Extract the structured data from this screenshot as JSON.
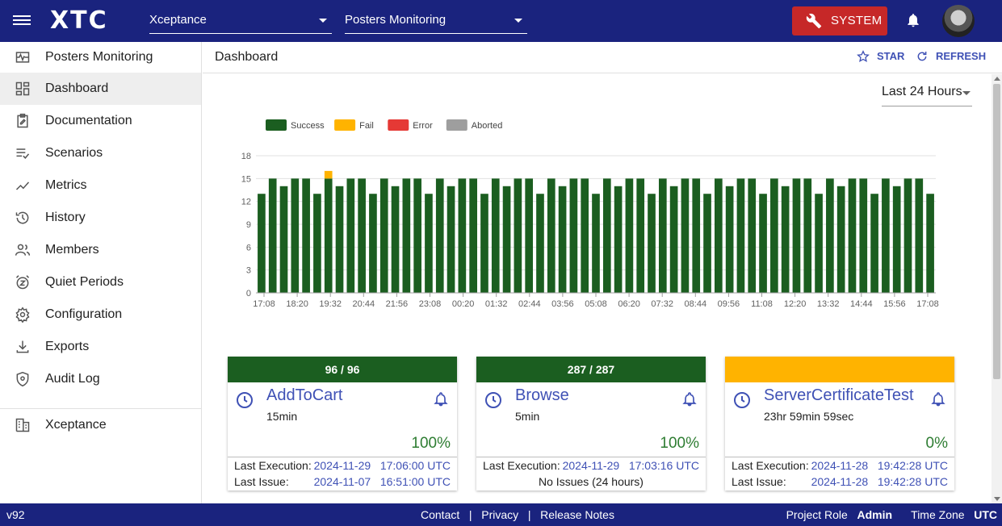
{
  "topbar": {
    "logo": "XTC",
    "org_select": "Xceptance",
    "project_select": "Posters Monitoring",
    "system_label": "SYSTEM"
  },
  "sidebar": {
    "project": "Posters Monitoring",
    "items": [
      {
        "label": "Dashboard",
        "icon": "dashboard-icon",
        "active": true
      },
      {
        "label": "Documentation",
        "icon": "documentation-icon"
      },
      {
        "label": "Scenarios",
        "icon": "scenarios-icon"
      },
      {
        "label": "Metrics",
        "icon": "metrics-icon"
      },
      {
        "label": "History",
        "icon": "history-icon"
      },
      {
        "label": "Members",
        "icon": "members-icon"
      },
      {
        "label": "Quiet Periods",
        "icon": "quiet-periods-icon"
      },
      {
        "label": "Configuration",
        "icon": "gear-icon"
      },
      {
        "label": "Exports",
        "icon": "download-icon"
      },
      {
        "label": "Audit Log",
        "icon": "shield-icon"
      }
    ],
    "org": "Xceptance"
  },
  "header": {
    "title": "Dashboard",
    "star_label": "STAR",
    "refresh_label": "REFRESH"
  },
  "time_range": "Last 24 Hours",
  "colors": {
    "success": "#1b5e20",
    "fail": "#ffb300",
    "error": "#e53935",
    "aborted": "#9e9e9e",
    "brand": "#1a237e",
    "link": "#3f51b5"
  },
  "chart_data": {
    "type": "bar",
    "stacked": true,
    "legend": [
      "Success",
      "Fail",
      "Error",
      "Aborted"
    ],
    "legend_position": "top-left",
    "ylim": [
      0,
      18
    ],
    "yticks": [
      0,
      3,
      6,
      9,
      12,
      15,
      18
    ],
    "xticks": [
      "17:08",
      "18:20",
      "19:32",
      "20:44",
      "21:56",
      "23:08",
      "00:20",
      "01:32",
      "02:44",
      "03:56",
      "05:08",
      "06:20",
      "07:32",
      "08:44",
      "09:56",
      "11:08",
      "12:20",
      "13:32",
      "14:44",
      "15:56",
      "17:08"
    ],
    "grid": true,
    "series": [
      {
        "name": "Success",
        "values": [
          13,
          15,
          14,
          15,
          15,
          13,
          15,
          14,
          15,
          15,
          13,
          15,
          14,
          15,
          15,
          13,
          15,
          14,
          15,
          15,
          13,
          15,
          14,
          15,
          15,
          13,
          15,
          14,
          15,
          15,
          13,
          15,
          14,
          15,
          15,
          13,
          15,
          14,
          15,
          15,
          13,
          15,
          14,
          15,
          15,
          13,
          15,
          14,
          15,
          15,
          13,
          15,
          14,
          15,
          15,
          13,
          15,
          14,
          15,
          15,
          13
        ]
      },
      {
        "name": "Fail",
        "values": [
          0,
          0,
          0,
          0,
          0,
          0,
          1,
          0,
          0,
          0,
          0,
          0,
          0,
          0,
          0,
          0,
          0,
          0,
          0,
          0,
          0,
          0,
          0,
          0,
          0,
          0,
          0,
          0,
          0,
          0,
          0,
          0,
          0,
          0,
          0,
          0,
          0,
          0,
          0,
          0,
          0,
          0,
          0,
          0,
          0,
          0,
          0,
          0,
          0,
          0,
          0,
          0,
          0,
          0,
          0,
          0,
          0,
          0,
          0,
          0,
          0
        ]
      }
    ]
  },
  "cards": [
    {
      "header": "96 / 96",
      "status": "success",
      "name": "AddToCart",
      "interval": "15min",
      "percent": "100%",
      "exec_label": "Last Execution:",
      "exec_value": "2024-11-29   17:06:00 UTC",
      "issue_label": "Last Issue:",
      "issue_value": "2024-11-07   16:51:00 UTC"
    },
    {
      "header": "287 / 287",
      "status": "success",
      "name": "Browse",
      "interval": "5min",
      "percent": "100%",
      "exec_label": "Last Execution:",
      "exec_value": "2024-11-29   17:03:16 UTC",
      "issue_text": "No Issues (24 hours)"
    },
    {
      "header": "",
      "status": "fail",
      "name": "ServerCertificateTest",
      "interval": "23hr 59min 59sec",
      "percent": "0%",
      "exec_label": "Last Execution:",
      "exec_value": "2024-11-28   19:42:28 UTC",
      "issue_label": "Last Issue:",
      "issue_value": "2024-11-28   19:42:28 UTC"
    }
  ],
  "footer": {
    "version": "v92",
    "contact": "Contact",
    "privacy": "Privacy",
    "release_notes": "Release Notes",
    "sep": "|",
    "role_label": "Project Role",
    "role_value": "Admin",
    "tz_label": "Time Zone",
    "tz_value": "UTC"
  }
}
